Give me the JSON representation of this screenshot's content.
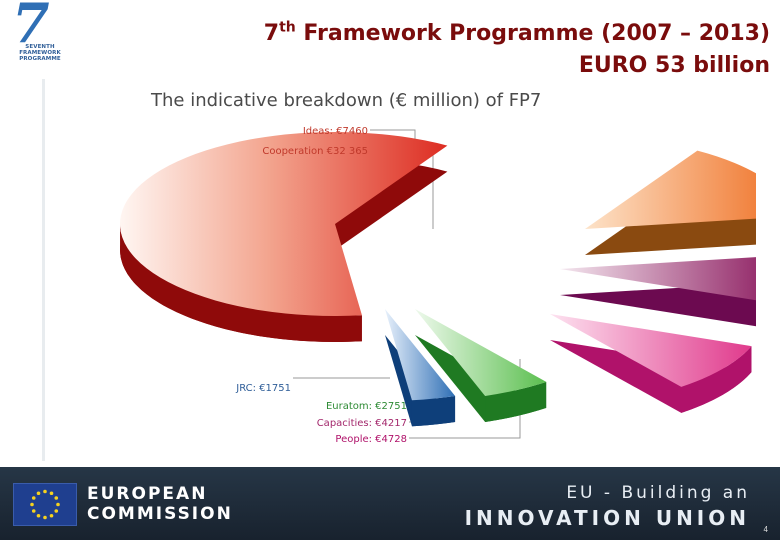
{
  "header": {
    "logo_lines": [
      "SEVENTH FRAMEWORK",
      "PROGRAMME"
    ],
    "title_prefix": "7",
    "title_sup": "th",
    "title_rest": " Framework Programme (2007 – 2013)",
    "subtitle": "EURO 53 billion"
  },
  "chart_data": {
    "type": "pie",
    "title": "The indicative breakdown (€ million) of FP7",
    "unit": "€ million",
    "slices": [
      {
        "name": "Ideas",
        "label": "Ideas: €7460",
        "value": 7460,
        "color": "#e8782a"
      },
      {
        "name": "Cooperation",
        "label": "Cooperation €32 365",
        "value": 32365,
        "color": "#e0312a"
      },
      {
        "name": "JRC",
        "label": "JRC: €1751",
        "value": 1751,
        "color": "#2f6fb5"
      },
      {
        "name": "Euratom",
        "label": "Euratom: €2751",
        "value": 2751,
        "color": "#3aa03a"
      },
      {
        "name": "Capacities",
        "label": "Capacities: €4217",
        "value": 4217,
        "color": "#a3286c"
      },
      {
        "name": "People",
        "label": "People: €4728",
        "value": 4728,
        "color": "#e53c8e"
      }
    ]
  },
  "footer": {
    "org_line1": "EUROPEAN",
    "org_line2": "COMMISSION",
    "slogan_line1": "EU - Building an",
    "slogan_line2": "INNOVATION UNION",
    "page_number": "4"
  }
}
